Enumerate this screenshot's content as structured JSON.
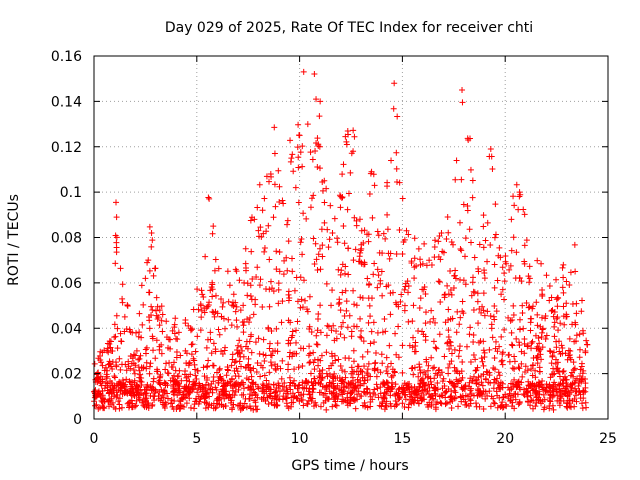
{
  "chart_data": {
    "type": "scatter",
    "title": "Day 029 of 2025, Rate Of TEC Index for receiver chti",
    "xlabel": "GPS time / hours",
    "ylabel": "ROTI / TECUs",
    "xlim": [
      0,
      25
    ],
    "ylim": [
      0,
      0.16
    ],
    "x_ticks": [
      "0",
      "5",
      "10",
      "15",
      "20",
      "25"
    ],
    "y_ticks": [
      "0",
      "0.02",
      "0.04",
      "0.06",
      "0.08",
      "0.1",
      "0.12",
      "0.14",
      "0.16"
    ],
    "grid": true,
    "marker": "+",
    "color": "#ff0000",
    "series": [
      {
        "values_note_free": true,
        "x": [
          0.0,
          0.3,
          0.6,
          0.9,
          1.1,
          1.5,
          2.0,
          2.5,
          2.8,
          3.2,
          3.7,
          4.2,
          4.7,
          5.2,
          5.6,
          5.8,
          6.2,
          6.8,
          7.3,
          7.8,
          8.2,
          8.6,
          8.8,
          9.2,
          9.6,
          10.0,
          10.2,
          10.4,
          10.8,
          11.0,
          11.2,
          11.6,
          12.0,
          12.3,
          12.6,
          13.0,
          13.5,
          14.0,
          14.6,
          15.2,
          15.8,
          16.3,
          16.9,
          17.4,
          17.9,
          18.2,
          18.7,
          19.3,
          19.8,
          20.3,
          20.7,
          21.2,
          21.8,
          22.3,
          22.8,
          23.4,
          23.9
        ],
        "y": [
          0.012,
          0.026,
          0.018,
          0.03,
          0.089,
          0.045,
          0.028,
          0.062,
          0.082,
          0.048,
          0.035,
          0.028,
          0.04,
          0.05,
          0.097,
          0.085,
          0.045,
          0.055,
          0.06,
          0.088,
          0.092,
          0.108,
          0.117,
          0.095,
          0.115,
          0.125,
          0.153,
          0.13,
          0.141,
          0.14,
          0.105,
          0.082,
          0.098,
          0.121,
          0.118,
          0.075,
          0.109,
          0.065,
          0.148,
          0.083,
          0.075,
          0.07,
          0.082,
          0.078,
          0.145,
          0.123,
          0.065,
          0.119,
          0.055,
          0.088,
          0.1,
          0.062,
          0.055,
          0.048,
          0.058,
          0.065,
          0.03
        ]
      }
    ]
  }
}
